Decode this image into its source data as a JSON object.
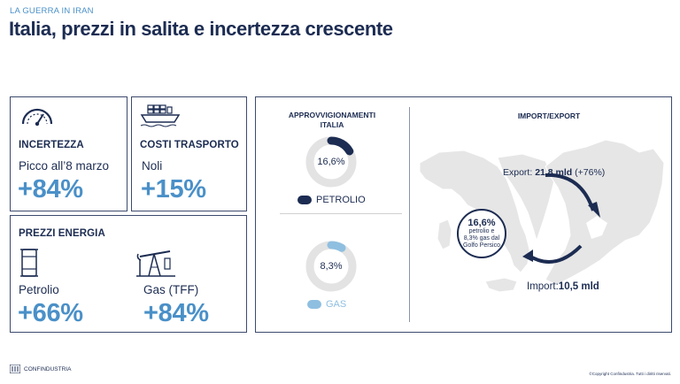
{
  "header": {
    "kicker": "LA GUERRA IN IRAN",
    "title": "Italia, prezzi in salita e incertezza crescente"
  },
  "incertezza": {
    "label": "INCERTEZZA",
    "sub": "Picco all’8 marzo",
    "value": "+84%",
    "icon": "gauge-icon"
  },
  "trasporto": {
    "label": "COSTI TRASPORTO",
    "sub": "Noli",
    "value": "+15%",
    "icon": "cargo-ship-icon"
  },
  "energia": {
    "label": "PREZZI ENERGIA",
    "petrolio": {
      "sub": "Petrolio",
      "value": "+66%",
      "icon": "oil-barrel-icon"
    },
    "gas": {
      "sub": "Gas (TFF)",
      "value": "+84%",
      "icon": "oil-pump-icon"
    }
  },
  "approvvigionamenti": {
    "title_line1": "APPROVVIGIONAMENTI",
    "title_line2": "ITALIA",
    "petrolio": {
      "value": "16,6%",
      "fraction": 0.166,
      "legend": "PETROLIO",
      "color": "#1c2c52"
    },
    "gas": {
      "value": "8,3%",
      "fraction": 0.083,
      "legend": "GAS",
      "color": "#8fbfe0"
    },
    "track_color": "#e3e3e3"
  },
  "import_export": {
    "title": "IMPORT/EXPORT",
    "export_label": "Export:",
    "export_value": "21,8 mld",
    "export_change": "(+76%)",
    "import_label": "Import:",
    "import_value": "10,5 mld",
    "badge_value": "16,6%",
    "badge_line1": "petrolio e",
    "badge_line2": "8,3% gas dal",
    "badge_line3": "Golfo Persico"
  },
  "footer": {
    "brand": "CONFINDUSTRIA",
    "copyright": "©Copyright Confindustria. Tutti i diritti riservati."
  },
  "colors": {
    "navy": "#1c2c52",
    "accent": "#4a90c8",
    "light_blue": "#8fbfe0",
    "map_fill": "#e6e6e6"
  }
}
